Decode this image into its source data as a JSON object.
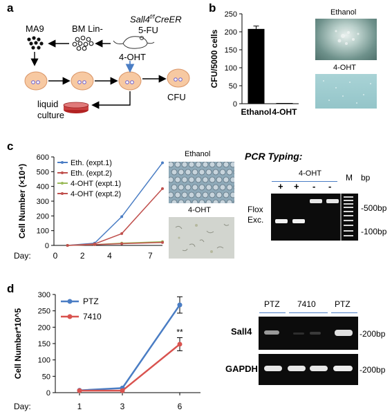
{
  "panels": {
    "a": "a",
    "b": "b",
    "c": "c",
    "d": "d"
  },
  "panel_a": {
    "ma9": "MA9",
    "bm_lin": "BM Lin-",
    "mouse_genotype": "Sall4",
    "mouse_genotype_sup": "f/f",
    "mouse_genotype_suffix": "CreER",
    "five_fu": "5-FU",
    "four_oht": "4-OHT",
    "liquid_culture_1": "liquid",
    "liquid_culture_2": "culture",
    "cfu": "CFU"
  },
  "panel_b": {
    "image_label_top": "Ethanol",
    "image_label_bottom": "4-OHT"
  },
  "panel_c": {
    "image_label_top": "Ethanol",
    "image_label_bottom": "4-OHT",
    "pcr_title": "PCR Typing:",
    "gel_header": "4-OHT",
    "lanes": [
      "+",
      "+",
      "-",
      "-"
    ],
    "marker_label": "M",
    "bp_label": "bp",
    "flox_label": "Flox",
    "exc_label": "Exc.",
    "size_500": "-500bp",
    "size_100": "-100bp"
  },
  "panel_d": {
    "gel_headers": [
      "PTZ",
      "7410",
      "PTZ"
    ],
    "row_sall4": "Sall4",
    "row_gapdh": "GAPDH",
    "size_sall4": "-200bp",
    "size_gapdh": "-200bp"
  },
  "chart_data": [
    {
      "id": "b",
      "type": "bar",
      "categories": [
        "Ethanol",
        "4-OHT"
      ],
      "values": [
        208,
        1
      ],
      "errors": [
        8,
        0
      ],
      "ylabel": "CFU/5000 cells",
      "ylim": [
        0,
        250
      ],
      "yticks": [
        0,
        50,
        100,
        150,
        200,
        250
      ],
      "colors": [
        "#000000",
        "#000000"
      ]
    },
    {
      "id": "c",
      "type": "line",
      "ylabel": "Cell Number (×10⁴)",
      "xlabel_prefix": "Day:",
      "ylim": [
        0,
        600
      ],
      "yticks": [
        0,
        100,
        200,
        300,
        400,
        500,
        600
      ],
      "xlim": [
        0,
        8
      ],
      "xticks": [
        0,
        2,
        4,
        7
      ],
      "legend_position": "top-left",
      "series": [
        {
          "name": "Eth. (expt.1)",
          "color": "#4a7dc4",
          "x": [
            1,
            3,
            5,
            8
          ],
          "values": [
            0,
            15,
            195,
            560
          ]
        },
        {
          "name": "Eth. (expt.2)",
          "color": "#c0504d",
          "x": [
            1,
            3,
            5,
            8
          ],
          "values": [
            0,
            10,
            80,
            385
          ]
        },
        {
          "name": "4-OHT (expt.1)",
          "color": "#9bbb59",
          "x": [
            1,
            3,
            5,
            8
          ],
          "values": [
            0,
            5,
            15,
            25
          ]
        },
        {
          "name": "4-OHT (expt.2)",
          "color": "#c0504d",
          "x": [
            1,
            3,
            5,
            8
          ],
          "values": [
            0,
            5,
            12,
            20
          ]
        }
      ]
    },
    {
      "id": "d",
      "type": "line",
      "ylabel": "Cell Number*10^5",
      "xlabel_prefix": "Day:",
      "categories": [
        "1",
        "3",
        "6"
      ],
      "ylim": [
        0,
        300
      ],
      "yticks": [
        0,
        50,
        100,
        150,
        200,
        250,
        300
      ],
      "legend_position": "top-left",
      "annotation": "**",
      "series": [
        {
          "name": "PTZ",
          "color": "#4a7dc4",
          "values": [
            7,
            14,
            268
          ],
          "errors": [
            0,
            0,
            25
          ]
        },
        {
          "name": "7410",
          "color": "#d9534f",
          "values": [
            6,
            6,
            148
          ],
          "errors": [
            0,
            0,
            20
          ]
        }
      ]
    }
  ]
}
